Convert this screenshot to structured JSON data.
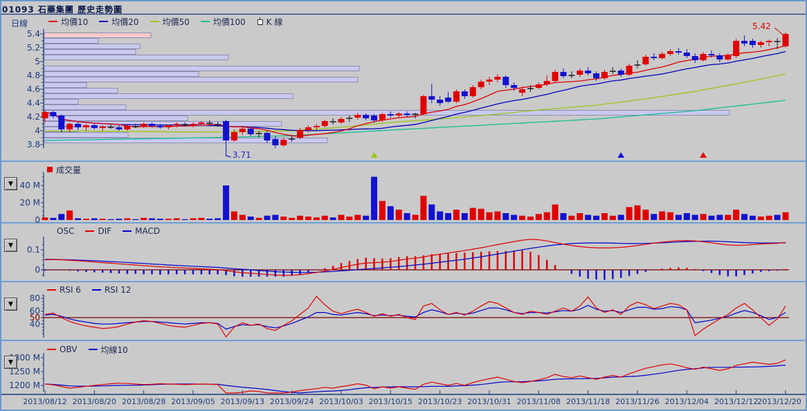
{
  "window": {
    "title": "01093 石藥集團  歷史走勢圖"
  },
  "ui": {
    "collapse_glyph": "▼"
  },
  "colors": {
    "background": "#cacaca",
    "frame": "#6a97cc",
    "divider": "#6f9fd6",
    "axis": "#1b3a7e",
    "dark_red": "#7a0000",
    "up": "#e00000",
    "down": "#1212cf",
    "doji": "#1a1a1a",
    "ma10": "#e00000",
    "ma20": "#0000bb",
    "ma50": "#9dc518",
    "ma100": "#10c090",
    "dif": "#e00000",
    "macd": "#0000cc",
    "rsi6": "#e00000",
    "rsi12": "#0000cc",
    "obv": "#e00000",
    "obv_ma": "#0000cc",
    "profile": "#c9c9ef",
    "profile_hot": "#f8caca",
    "profile_edge": "#8f8fb0",
    "annotation_high": "#e00000",
    "annotation_low": "#2222cc"
  },
  "panels": {
    "main": {
      "mode_label": "日線",
      "legend": [
        {
          "label": "均價10",
          "color": "#e00000",
          "swatch": "dash"
        },
        {
          "label": "均價20",
          "color": "#0000bb",
          "swatch": "dash"
        },
        {
          "label": "均價50",
          "color": "#9dc518",
          "swatch": "dash"
        },
        {
          "label": "均價100",
          "color": "#10c090",
          "swatch": "dash"
        },
        {
          "label": "K 線",
          "swatch": "candle"
        }
      ],
      "y_ticks": [
        [
          5.4,
          "5.4"
        ],
        [
          5.2,
          "5.2"
        ],
        [
          5,
          "5"
        ],
        [
          4.8,
          "4.8"
        ],
        [
          4.6,
          "4.6"
        ],
        [
          4.4,
          "4.4"
        ],
        [
          4.2,
          "4.2"
        ],
        [
          4,
          "4"
        ],
        [
          3.8,
          "3.8"
        ]
      ]
    },
    "volume": {
      "legend": [
        {
          "label": "成交量",
          "color": "#e00000",
          "swatch": "square"
        }
      ],
      "y_ticks": [
        [
          40,
          "40 M"
        ],
        [
          20,
          "20 M"
        ],
        [
          0,
          "0"
        ]
      ]
    },
    "macd": {
      "legend": [
        {
          "label": "OSC",
          "swatch": "none"
        },
        {
          "label": "DIF",
          "color": "#e00000",
          "swatch": "dash"
        },
        {
          "label": "MACD",
          "color": "#0000cc",
          "swatch": "dash"
        }
      ],
      "y_ticks": [
        [
          0.1,
          "0.1"
        ],
        [
          0,
          "0"
        ]
      ]
    },
    "rsi": {
      "legend": [
        {
          "label": "RSI 6",
          "color": "#e00000",
          "swatch": "dash"
        },
        {
          "label": "RSI 12",
          "color": "#0000cc",
          "swatch": "dash"
        }
      ],
      "y_ticks": [
        [
          80,
          "80"
        ],
        [
          60,
          "60"
        ],
        [
          50,
          "50"
        ],
        [
          40,
          "40"
        ]
      ],
      "midline": 50
    },
    "obv": {
      "legend": [
        {
          "label": "OBV",
          "color": "#e00000",
          "swatch": "dash"
        },
        {
          "label": "均線10",
          "color": "#0000cc",
          "swatch": "dash"
        }
      ],
      "y_ticks": [
        [
          1300,
          "1300 M"
        ],
        [
          1250,
          "1250 M"
        ],
        [
          1200,
          "1200 M"
        ]
      ]
    }
  },
  "chart_data": {
    "type": "candlestick+indicators",
    "price_axis": {
      "min": 3.8,
      "max": 5.4,
      "step": 0.2
    },
    "x_labels": [
      "2013/08/12",
      "2013/08/20",
      "2013/08/28",
      "2013/09/05",
      "2013/09/13",
      "2013/09/24",
      "2013/10/03",
      "2013/10/15",
      "2013/10/23",
      "2013/10/31",
      "2013/11/08",
      "2013/11/18",
      "2013/11/26",
      "2013/12/04",
      "2013/12/12",
      "2013/12/20"
    ],
    "label_every": 6,
    "candles": [
      [
        4.18,
        4.3,
        4.12,
        4.27
      ],
      [
        4.27,
        4.29,
        4.18,
        4.21
      ],
      [
        4.22,
        4.24,
        3.98,
        4.02
      ],
      [
        4.02,
        4.12,
        3.98,
        4.1
      ],
      [
        4.1,
        4.12,
        4.02,
        4.05
      ],
      [
        4.05,
        4.1,
        4.0,
        4.08
      ],
      [
        4.08,
        4.1,
        4.02,
        4.04
      ],
      [
        4.04,
        4.08,
        4.0,
        4.06
      ],
      [
        4.06,
        4.1,
        4.03,
        4.05
      ],
      [
        4.05,
        4.08,
        4.0,
        4.02
      ],
      [
        4.02,
        4.08,
        4.0,
        4.07
      ],
      [
        4.07,
        4.1,
        4.04,
        4.06
      ],
      [
        4.06,
        4.12,
        4.04,
        4.1
      ],
      [
        4.1,
        4.12,
        4.05,
        4.07
      ],
      [
        4.07,
        4.1,
        4.03,
        4.05
      ],
      [
        4.05,
        4.09,
        4.02,
        4.08
      ],
      [
        4.08,
        4.12,
        4.05,
        4.1
      ],
      [
        4.1,
        4.12,
        4.06,
        4.09
      ],
      [
        4.08,
        4.12,
        4.05,
        4.1
      ],
      [
        4.1,
        4.14,
        4.07,
        4.12
      ],
      [
        4.12,
        4.15,
        4.08,
        4.11
      ],
      [
        4.1,
        4.13,
        4.06,
        4.09
      ],
      [
        4.14,
        4.16,
        3.71,
        3.86
      ],
      [
        3.86,
        4.02,
        3.84,
        3.98
      ],
      [
        3.98,
        4.06,
        3.94,
        4.03
      ],
      [
        4.03,
        4.05,
        3.92,
        3.95
      ],
      [
        3.95,
        4.0,
        3.9,
        3.96
      ],
      [
        3.97,
        3.99,
        3.82,
        3.86
      ],
      [
        3.88,
        3.92,
        3.75,
        3.79
      ],
      [
        3.79,
        3.9,
        3.77,
        3.87
      ],
      [
        3.87,
        3.94,
        3.84,
        3.88
      ],
      [
        3.9,
        4.04,
        3.88,
        4.01
      ],
      [
        4.01,
        4.08,
        3.98,
        4.05
      ],
      [
        4.05,
        4.1,
        4.01,
        4.07
      ],
      [
        4.07,
        4.16,
        4.05,
        4.14
      ],
      [
        4.14,
        4.18,
        4.09,
        4.13
      ],
      [
        4.12,
        4.2,
        4.1,
        4.17
      ],
      [
        4.17,
        4.22,
        4.13,
        4.18
      ],
      [
        4.19,
        4.26,
        4.16,
        4.23
      ],
      [
        4.23,
        4.25,
        4.15,
        4.18
      ],
      [
        4.22,
        4.24,
        4.12,
        4.15
      ],
      [
        4.15,
        4.26,
        4.13,
        4.24
      ],
      [
        4.24,
        4.28,
        4.19,
        4.22
      ],
      [
        4.22,
        4.27,
        4.18,
        4.25
      ],
      [
        4.25,
        4.28,
        4.2,
        4.23
      ],
      [
        4.23,
        4.26,
        4.18,
        4.24
      ],
      [
        4.24,
        4.52,
        4.22,
        4.5
      ],
      [
        4.5,
        4.68,
        4.4,
        4.45
      ],
      [
        4.45,
        4.5,
        4.36,
        4.4
      ],
      [
        4.48,
        4.56,
        4.4,
        4.42
      ],
      [
        4.42,
        4.6,
        4.4,
        4.57
      ],
      [
        4.57,
        4.6,
        4.46,
        4.5
      ],
      [
        4.5,
        4.66,
        4.48,
        4.63
      ],
      [
        4.63,
        4.74,
        4.6,
        4.71
      ],
      [
        4.71,
        4.78,
        4.66,
        4.74
      ],
      [
        4.74,
        4.82,
        4.7,
        4.78
      ],
      [
        4.78,
        4.8,
        4.62,
        4.66
      ],
      [
        4.66,
        4.7,
        4.58,
        4.62
      ],
      [
        4.55,
        4.64,
        4.5,
        4.6
      ],
      [
        4.6,
        4.66,
        4.56,
        4.61
      ],
      [
        4.62,
        4.7,
        4.6,
        4.67
      ],
      [
        4.67,
        4.8,
        4.64,
        4.72
      ],
      [
        4.72,
        4.88,
        4.7,
        4.85
      ],
      [
        4.85,
        4.9,
        4.76,
        4.79
      ],
      [
        4.79,
        4.86,
        4.76,
        4.8
      ],
      [
        4.81,
        4.9,
        4.78,
        4.87
      ],
      [
        4.87,
        4.92,
        4.8,
        4.83
      ],
      [
        4.83,
        4.86,
        4.72,
        4.76
      ],
      [
        4.76,
        4.88,
        4.74,
        4.85
      ],
      [
        4.85,
        4.92,
        4.82,
        4.86
      ],
      [
        4.87,
        4.9,
        4.78,
        4.81
      ],
      [
        4.81,
        4.97,
        4.79,
        4.94
      ],
      [
        4.94,
        5.02,
        4.9,
        4.95
      ],
      [
        4.96,
        5.1,
        4.94,
        5.07
      ],
      [
        5.07,
        5.12,
        5.02,
        5.05
      ],
      [
        5.05,
        5.14,
        5.03,
        5.11
      ],
      [
        5.11,
        5.18,
        5.08,
        5.15
      ],
      [
        5.15,
        5.2,
        5.1,
        5.13
      ],
      [
        5.13,
        5.18,
        5.05,
        5.08
      ],
      [
        5.08,
        5.12,
        4.98,
        5.02
      ],
      [
        5.02,
        5.14,
        5.0,
        5.11
      ],
      [
        5.11,
        5.16,
        5.06,
        5.09
      ],
      [
        5.09,
        5.12,
        4.99,
        5.03
      ],
      [
        5.03,
        5.12,
        5.01,
        5.1
      ],
      [
        5.08,
        5.33,
        5.05,
        5.3
      ],
      [
        5.3,
        5.38,
        5.22,
        5.26
      ],
      [
        5.3,
        5.33,
        5.2,
        5.24
      ],
      [
        5.24,
        5.3,
        5.2,
        5.28
      ],
      [
        5.28,
        5.32,
        5.22,
        5.3
      ],
      [
        5.3,
        5.34,
        5.18,
        5.29
      ],
      [
        5.22,
        5.42,
        5.2,
        5.4
      ]
    ],
    "volume_m": [
      3,
      2.5,
      7,
      11,
      2,
      1.5,
      2,
      1.5,
      1,
      1.5,
      2,
      1,
      2.5,
      2,
      1.5,
      1.5,
      2,
      1,
      2,
      2.5,
      1.5,
      2,
      40,
      10,
      6,
      4,
      2.5,
      5,
      6,
      4,
      2.5,
      5,
      4,
      3,
      5,
      3,
      6,
      4,
      6,
      5,
      50,
      22,
      16,
      12,
      8,
      6,
      28,
      18,
      10,
      8,
      12,
      8,
      14,
      13,
      9,
      10,
      8,
      6,
      5,
      4,
      7,
      9,
      18,
      8,
      5,
      8,
      6,
      5,
      8,
      5,
      6,
      15,
      17,
      12,
      7,
      10,
      9,
      6,
      8,
      6,
      7,
      5,
      6,
      6,
      12,
      7,
      5,
      4,
      5,
      6,
      9
    ],
    "ma50_points": [
      [
        0,
        4.0
      ],
      [
        10,
        3.99
      ],
      [
        20,
        3.98
      ],
      [
        30,
        4.0
      ],
      [
        36,
        4.05
      ],
      [
        42,
        4.12
      ],
      [
        48,
        4.17
      ],
      [
        54,
        4.23
      ],
      [
        60,
        4.3
      ],
      [
        67,
        4.37
      ],
      [
        73,
        4.46
      ],
      [
        79,
        4.57
      ],
      [
        85,
        4.7
      ],
      [
        90,
        4.82
      ]
    ],
    "ma100_points": [
      [
        0,
        3.86
      ],
      [
        10,
        3.88
      ],
      [
        20,
        3.9
      ],
      [
        30,
        3.93
      ],
      [
        42,
        4.01
      ],
      [
        53,
        4.08
      ],
      [
        67,
        4.17
      ],
      [
        79,
        4.29
      ],
      [
        90,
        4.44
      ]
    ],
    "volume_profile": {
      "prices": [
        5.38,
        5.3,
        5.22,
        5.14,
        5.06,
        4.9,
        4.82,
        4.74,
        4.66,
        4.58,
        4.5,
        4.42,
        4.34,
        4.26,
        4.18,
        4.1,
        4.02,
        3.94,
        3.86
      ],
      "fractions": [
        0.143,
        0.073,
        0.128,
        0.123,
        0.247,
        0.423,
        0.207,
        0.421,
        0.057,
        0.099,
        0.334,
        0.046,
        0.11,
        0.921,
        0.193,
        0.319,
        0.046,
        0.113,
        0.38
      ],
      "highlight_index": 0
    },
    "macd": {
      "dif": [
        0.05,
        0.051,
        0.05,
        0.048,
        0.045,
        0.042,
        0.039,
        0.036,
        0.033,
        0.03,
        0.027,
        0.024,
        0.021,
        0.018,
        0.015,
        0.013,
        0.011,
        0.009,
        0.007,
        0.005,
        0.003,
        0.001,
        -0.004,
        -0.01,
        -0.014,
        -0.017,
        -0.02,
        -0.023,
        -0.026,
        -0.028,
        -0.027,
        -0.024,
        -0.019,
        -0.013,
        -0.006,
        0.002,
        0.012,
        0.02,
        0.028,
        0.034,
        0.036,
        0.038,
        0.042,
        0.048,
        0.054,
        0.058,
        0.064,
        0.072,
        0.078,
        0.084,
        0.09,
        0.096,
        0.103,
        0.11,
        0.118,
        0.126,
        0.133,
        0.141,
        0.148,
        0.152,
        0.15,
        0.144,
        0.136,
        0.128,
        0.121,
        0.116,
        0.112,
        0.11,
        0.109,
        0.11,
        0.112,
        0.116,
        0.121,
        0.127,
        0.133,
        0.138,
        0.142,
        0.145,
        0.146,
        0.144,
        0.14,
        0.135,
        0.129,
        0.124,
        0.122,
        0.123,
        0.126,
        0.129,
        0.131,
        0.132,
        0.137
      ],
      "macd": [
        0.052,
        0.052,
        0.051,
        0.05,
        0.049,
        0.047,
        0.045,
        0.043,
        0.041,
        0.039,
        0.037,
        0.034,
        0.032,
        0.029,
        0.027,
        0.024,
        0.022,
        0.02,
        0.018,
        0.016,
        0.014,
        0.012,
        0.009,
        0.006,
        0.003,
        0.0,
        -0.003,
        -0.006,
        -0.009,
        -0.011,
        -0.012,
        -0.013,
        -0.013,
        -0.012,
        -0.01,
        -0.008,
        -0.005,
        -0.002,
        0.001,
        0.004,
        0.007,
        0.01,
        0.013,
        0.016,
        0.02,
        0.024,
        0.028,
        0.033,
        0.038,
        0.043,
        0.048,
        0.053,
        0.059,
        0.065,
        0.072,
        0.079,
        0.086,
        0.093,
        0.1,
        0.107,
        0.113,
        0.119,
        0.124,
        0.128,
        0.131,
        0.133,
        0.134,
        0.134,
        0.134,
        0.133,
        0.132,
        0.131,
        0.131,
        0.132,
        0.133,
        0.135,
        0.137,
        0.139,
        0.141,
        0.142,
        0.143,
        0.143,
        0.142,
        0.14,
        0.138,
        0.136,
        0.135,
        0.134,
        0.134,
        0.134,
        0.135
      ],
      "osc_display_scale": 2
    },
    "rsi": {
      "rsi6": [
        55,
        57,
        50,
        44,
        40,
        37,
        35,
        33,
        34,
        36,
        40,
        43,
        45,
        44,
        41,
        38,
        36,
        35,
        38,
        41,
        42,
        40,
        20,
        35,
        42,
        38,
        40,
        33,
        30,
        38,
        45,
        55,
        65,
        83,
        70,
        60,
        56,
        60,
        63,
        58,
        52,
        56,
        52,
        55,
        50,
        47,
        68,
        72,
        62,
        55,
        58,
        54,
        60,
        68,
        75,
        72,
        65,
        58,
        55,
        60,
        58,
        55,
        60,
        65,
        60,
        68,
        82,
        65,
        58,
        62,
        55,
        68,
        74,
        70,
        64,
        68,
        72,
        70,
        62,
        22,
        32,
        40,
        48,
        55,
        65,
        72,
        62,
        50,
        38,
        48,
        68
      ],
      "rsi12": [
        54,
        55,
        52,
        48,
        45,
        43,
        41,
        40,
        40,
        41,
        42,
        43,
        44,
        44,
        43,
        42,
        41,
        40,
        41,
        42,
        42,
        41,
        32,
        36,
        39,
        38,
        39,
        36,
        34,
        37,
        41,
        46,
        51,
        58,
        58,
        55,
        54,
        56,
        58,
        56,
        53,
        54,
        53,
        54,
        52,
        51,
        58,
        62,
        59,
        55,
        57,
        55,
        57,
        61,
        65,
        65,
        62,
        58,
        56,
        58,
        58,
        57,
        59,
        61,
        60,
        63,
        69,
        63,
        60,
        61,
        58,
        62,
        66,
        66,
        63,
        64,
        67,
        66,
        62,
        42,
        44,
        46,
        49,
        52,
        57,
        61,
        58,
        53,
        47,
        50,
        58
      ]
    },
    "obv_m": [
      1205,
      1202,
      1196,
      1190,
      1193,
      1197,
      1200,
      1203,
      1206,
      1208,
      1207,
      1205,
      1203,
      1204,
      1206,
      1205,
      1204,
      1203,
      1204,
      1205,
      1204,
      1203,
      1163,
      1168,
      1175,
      1180,
      1178,
      1172,
      1165,
      1170,
      1176,
      1181,
      1185,
      1188,
      1193,
      1190,
      1196,
      1200,
      1206,
      1201,
      1188,
      1195,
      1190,
      1195,
      1190,
      1186,
      1204,
      1212,
      1206,
      1200,
      1207,
      1200,
      1210,
      1218,
      1224,
      1230,
      1222,
      1214,
      1210,
      1214,
      1220,
      1228,
      1240,
      1232,
      1228,
      1234,
      1228,
      1222,
      1230,
      1236,
      1230,
      1242,
      1252,
      1262,
      1268,
      1274,
      1278,
      1272,
      1264,
      1258,
      1266,
      1260,
      1254,
      1260,
      1272,
      1278,
      1284,
      1280,
      1276,
      1280,
      1292
    ],
    "markers": [
      {
        "index": 40,
        "color": "#9dc518"
      },
      {
        "index": 70,
        "color": "#1212d0"
      },
      {
        "index": 80,
        "color": "#e00000"
      }
    ],
    "annotations": [
      {
        "text": "5.42",
        "index": 90,
        "position": "high"
      },
      {
        "text": "3.71",
        "index": 22,
        "position": "low"
      }
    ]
  }
}
